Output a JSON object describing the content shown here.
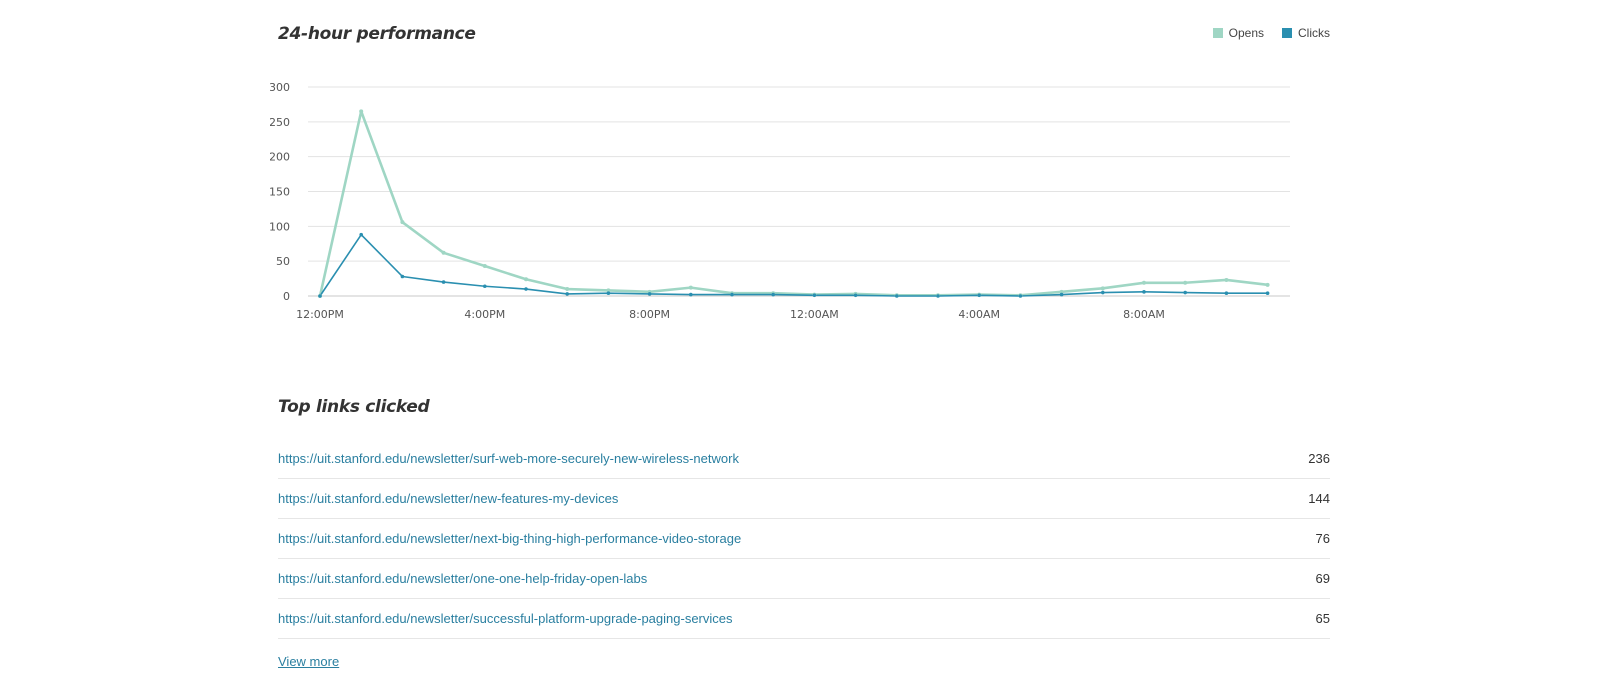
{
  "performance": {
    "title": "24-hour performance",
    "legend": [
      {
        "label": "Opens",
        "color": "#9fd6c4"
      },
      {
        "label": "Clicks",
        "color": "#2a8fb0"
      }
    ]
  },
  "chart_data": {
    "type": "line",
    "title": "24-hour performance",
    "x": [
      "12:00PM",
      "1:00PM",
      "2:00PM",
      "3:00PM",
      "4:00PM",
      "5:00PM",
      "6:00PM",
      "7:00PM",
      "8:00PM",
      "9:00PM",
      "10:00PM",
      "11:00PM",
      "12:00AM",
      "1:00AM",
      "2:00AM",
      "3:00AM",
      "4:00AM",
      "5:00AM",
      "6:00AM",
      "7:00AM",
      "8:00AM",
      "9:00AM",
      "10:00AM",
      "11:00AM"
    ],
    "x_tick_labels": [
      "12:00PM",
      "4:00PM",
      "8:00PM",
      "12:00AM",
      "4:00AM",
      "8:00AM"
    ],
    "ylim": [
      0,
      300
    ],
    "y_ticks": [
      0,
      50,
      100,
      150,
      200,
      250,
      300
    ],
    "grid": true,
    "legend_position": "top-right",
    "series": [
      {
        "name": "Opens",
        "color": "#9fd6c4",
        "values": [
          0,
          265,
          106,
          62,
          43,
          24,
          10,
          8,
          6,
          12,
          4,
          4,
          2,
          3,
          1,
          1,
          2,
          1,
          6,
          11,
          19,
          19,
          23,
          16
        ]
      },
      {
        "name": "Clicks",
        "color": "#2a8fb0",
        "values": [
          0,
          88,
          28,
          20,
          14,
          10,
          3,
          4,
          3,
          2,
          2,
          2,
          1,
          1,
          0,
          0,
          1,
          0,
          2,
          5,
          6,
          5,
          4,
          4
        ]
      }
    ]
  },
  "links": {
    "title": "Top links clicked",
    "items": [
      {
        "url": "https://uit.stanford.edu/newsletter/surf-web-more-securely-new-wireless-network",
        "count": "236"
      },
      {
        "url": "https://uit.stanford.edu/newsletter/new-features-my-devices",
        "count": "144"
      },
      {
        "url": "https://uit.stanford.edu/newsletter/next-big-thing-high-performance-video-storage",
        "count": "76"
      },
      {
        "url": "https://uit.stanford.edu/newsletter/one-one-help-friday-open-labs",
        "count": "69"
      },
      {
        "url": "https://uit.stanford.edu/newsletter/successful-platform-upgrade-paging-services",
        "count": "65"
      }
    ],
    "view_more": "View more"
  }
}
